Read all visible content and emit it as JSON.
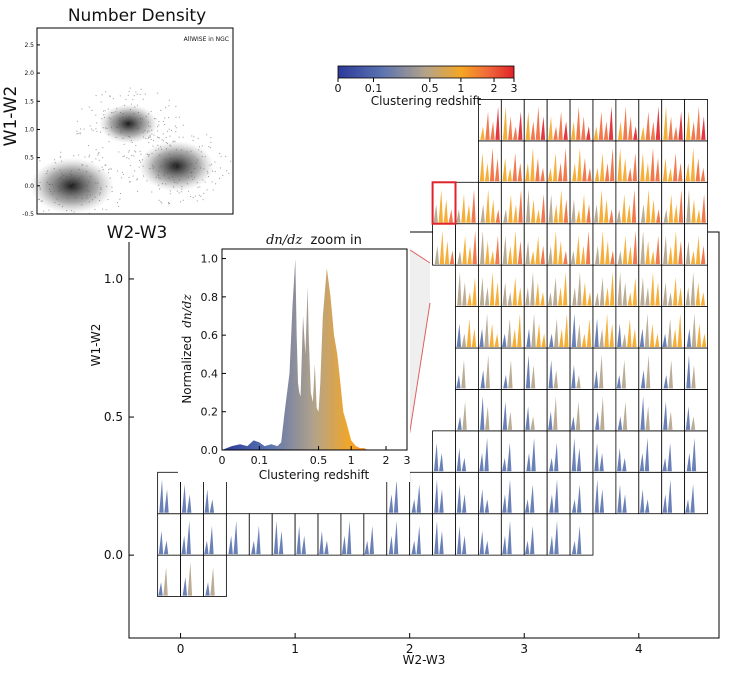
{
  "chart_data": [
    {
      "type": "scatter",
      "title": "Number Density",
      "xlabel": "W2-W3",
      "ylabel": "W1-W2",
      "annotation": "AllWISE in NGC",
      "ylim": [
        -0.5,
        2.8
      ],
      "yticks": [
        "-0.5",
        "0.0",
        "0.5",
        "1.0",
        "1.5",
        "2.0",
        "2.5"
      ],
      "density_blobs": [
        {
          "x": 1.6,
          "y": 1.1,
          "weight": 0.7
        },
        {
          "x": 2.7,
          "y": 0.35,
          "weight": 0.9
        },
        {
          "x": 0.3,
          "y": 0.0,
          "weight": 1.0
        }
      ]
    },
    {
      "type": "heatmap",
      "title": "",
      "xlabel": "W2-W3",
      "ylabel": "W1-W2",
      "xlim": [
        -0.45,
        4.7
      ],
      "ylim": [
        -0.3,
        1.17
      ],
      "xticks": [
        "0",
        "1",
        "2",
        "3",
        "4"
      ],
      "yticks": [
        "0.0",
        "0.5",
        "1.0"
      ],
      "ytick_values": [
        0.0,
        0.5,
        1.0
      ],
      "xtick_values": [
        0,
        1,
        2,
        3,
        4
      ],
      "cell_width": 0.2,
      "cell_height": 0.15,
      "rows": [
        {
          "y": -0.15,
          "x_start": -0.2,
          "count": 3,
          "peak_z": [
            0.1
          ]
        },
        {
          "y": 0.0,
          "x_start": -0.2,
          "count": 19,
          "peak_z": [
            0.05
          ]
        },
        {
          "y": 0.15,
          "x_start": -0.2,
          "count": 3,
          "peak_z": [
            0.05
          ]
        },
        {
          "y": 0.15,
          "x_start": 1.8,
          "count": 14,
          "peak_z": [
            0.05
          ]
        },
        {
          "y": 0.3,
          "x_start": 0.0,
          "count": 1,
          "peak_z": [
            0.05
          ]
        },
        {
          "y": 0.3,
          "x_start": 2.2,
          "count": 12,
          "peak_z": [
            0.05
          ]
        },
        {
          "y": 0.45,
          "x_start": 2.4,
          "count": 11,
          "peak_z": [
            0.1
          ]
        },
        {
          "y": 0.6,
          "x_start": 2.4,
          "count": 11,
          "peak_z": [
            0.1
          ]
        },
        {
          "y": 0.75,
          "x_start": 2.4,
          "count": 11,
          "peak_z": [
            0.3
          ]
        },
        {
          "y": 0.9,
          "x_start": 2.4,
          "count": 11,
          "peak_z": [
            0.4
          ]
        },
        {
          "y": 1.05,
          "x_start": 2.2,
          "count": 12,
          "peak_z": [
            0.5
          ]
        },
        {
          "y": 1.2,
          "x_start": 2.2,
          "count": 12,
          "peak_z": [
            0.6
          ]
        },
        {
          "y": 1.35,
          "x_start": 2.6,
          "count": 10,
          "peak_z": [
            0.9
          ]
        },
        {
          "y": 1.5,
          "x_start": 2.6,
          "count": 10,
          "peak_z": [
            1.0
          ]
        },
        {
          "y": 1.65,
          "x_start": 2.8,
          "count": 9,
          "peak_z": [
            1.0
          ]
        },
        {
          "y": 1.8,
          "x_start": 3.2,
          "count": 7,
          "peak_z": [
            1.0
          ]
        },
        {
          "y": 1.95,
          "x_start": 3.4,
          "count": 3,
          "peak_z": [
            0.5
          ]
        }
      ]
    },
    {
      "type": "area",
      "title_math": "dn/dz",
      "title_text": "zoom in",
      "xlabel": "Clustering redshift",
      "ylabel_text": "Normalized",
      "ylabel_math": "dn/dz",
      "x_scale": "symlog",
      "xticks": [
        "0",
        "0.1",
        "0.5",
        "1",
        "2",
        "3"
      ],
      "xtick_values": [
        0,
        0.1,
        0.5,
        1,
        2,
        3
      ],
      "yticks": [
        "0.0",
        "0.2",
        "0.4",
        "0.6",
        "0.8",
        "1.0"
      ],
      "ytick_values": [
        0.0,
        0.2,
        0.4,
        0.6,
        0.8,
        1.0
      ],
      "ylim": [
        0,
        1.05
      ],
      "x": [
        0,
        0.02,
        0.04,
        0.06,
        0.08,
        0.1,
        0.12,
        0.15,
        0.18,
        0.2,
        0.22,
        0.25,
        0.27,
        0.29,
        0.3,
        0.31,
        0.32,
        0.33,
        0.35,
        0.37,
        0.39,
        0.4,
        0.42,
        0.44,
        0.46,
        0.48,
        0.5,
        0.52,
        0.55,
        0.6,
        0.65,
        0.7,
        0.75,
        0.8,
        0.85,
        0.9,
        1.0,
        1.1,
        1.2,
        1.3,
        1.4,
        1.6,
        2.0,
        3.0
      ],
      "y": [
        0.0,
        0.02,
        0.03,
        0.02,
        0.05,
        0.04,
        0.02,
        0.03,
        0.02,
        0.04,
        0.2,
        0.4,
        0.75,
        1.0,
        0.6,
        0.35,
        0.3,
        0.28,
        0.7,
        0.5,
        0.85,
        0.6,
        0.3,
        0.25,
        0.45,
        0.22,
        0.2,
        0.35,
        0.7,
        0.95,
        0.8,
        0.6,
        0.5,
        0.35,
        0.2,
        0.15,
        0.05,
        0.02,
        0.01,
        0.01,
        0.0,
        0.0,
        0.0,
        0.0
      ]
    }
  ],
  "colorbar": {
    "label": "Clustering redshift",
    "ticks": [
      "0",
      "0.1",
      "0.5",
      "1",
      "2",
      "3"
    ],
    "tick_values": [
      0,
      0.1,
      0.5,
      1,
      2,
      3
    ],
    "colors": [
      "#2b3a9a",
      "#5a73b0",
      "#b3a38a",
      "#f5a623",
      "#f06a3a",
      "#e0222a"
    ]
  }
}
